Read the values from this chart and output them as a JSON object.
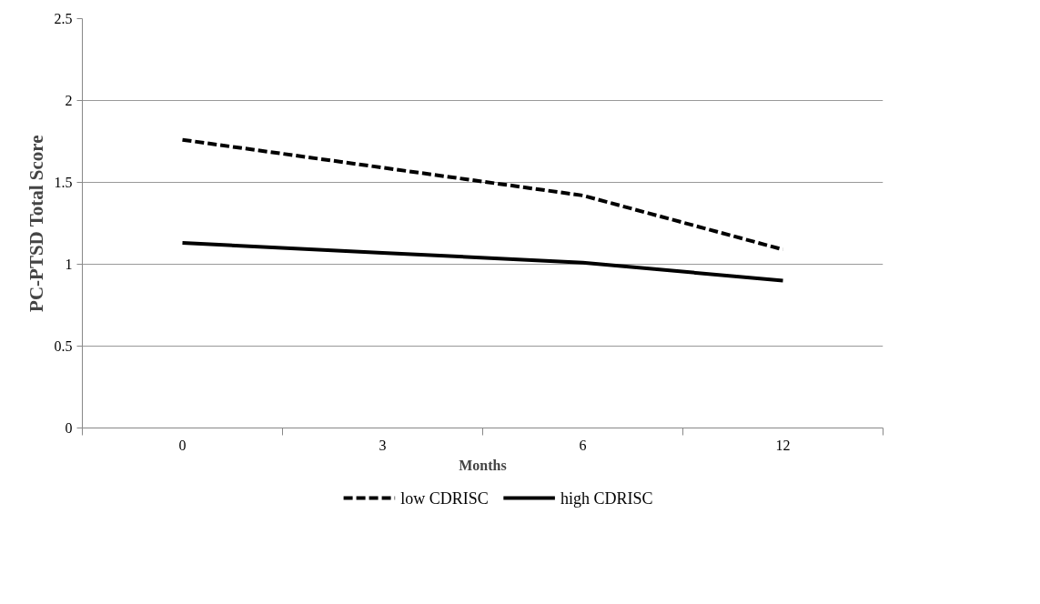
{
  "chart_data": {
    "type": "line",
    "xlabel": "Months",
    "ylabel": "PC-PTSD Total Score",
    "categories": [
      "0",
      "3",
      "6",
      "12"
    ],
    "series": [
      {
        "name": "low CDRISC",
        "color": "#000000",
        "line_style": "dashed",
        "values": [
          1.76,
          1.59,
          1.42,
          1.09
        ]
      },
      {
        "name": "high CDRISC",
        "color": "#000000",
        "line_style": "solid",
        "values": [
          1.13,
          1.07,
          1.01,
          0.9
        ]
      }
    ],
    "ylim": [
      0,
      2.5
    ],
    "yticks": [
      0,
      0.5,
      1,
      1.5,
      2,
      2.5
    ],
    "grid": "y",
    "legend": "bottom",
    "marker": "none"
  }
}
